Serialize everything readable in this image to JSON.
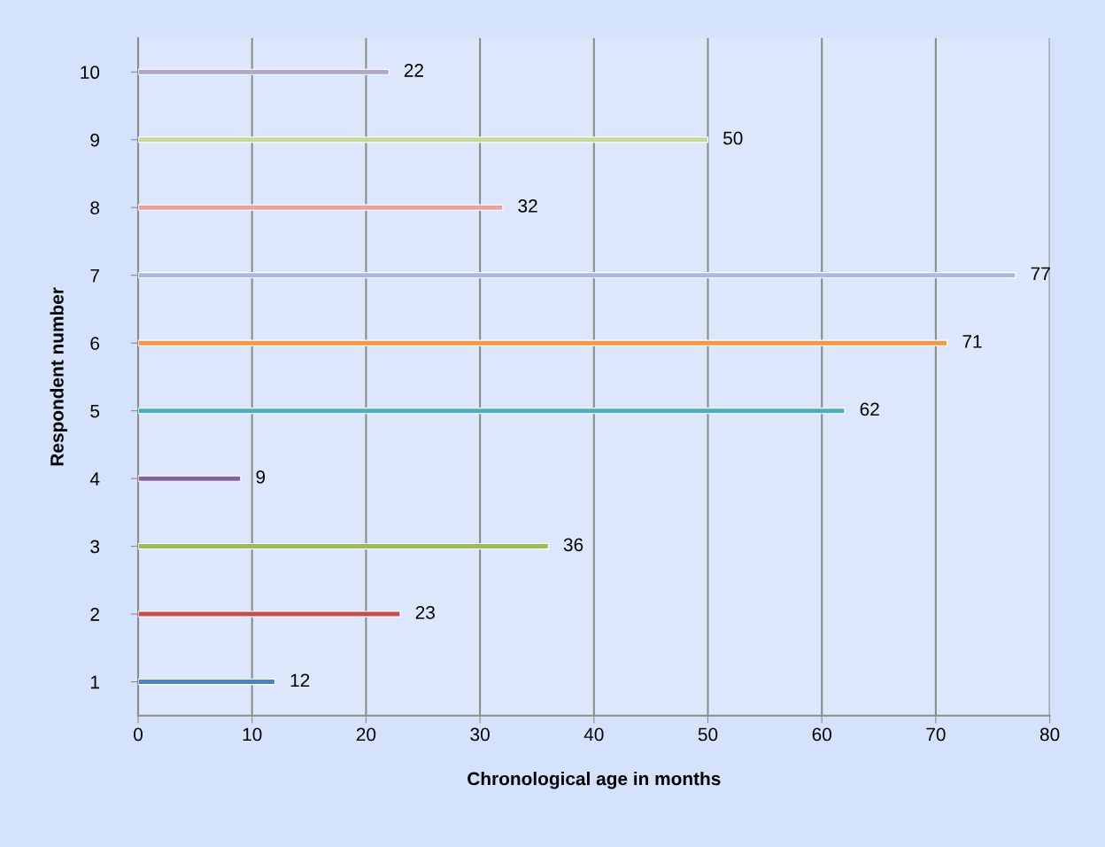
{
  "chart_data": {
    "type": "bar",
    "orientation": "horizontal",
    "xlabel": "Chronological age in months",
    "ylabel": "Respondent number",
    "categories": [
      "10",
      "9",
      "8",
      "7",
      "6",
      "5",
      "4",
      "3",
      "2",
      "1"
    ],
    "values": [
      22,
      50,
      32,
      77,
      71,
      62,
      9,
      36,
      23,
      12
    ],
    "colors": [
      "#b0a6c6",
      "#c6d99a",
      "#e6a3a3",
      "#a9bce0",
      "#f09a48",
      "#4bacc6",
      "#8064a2",
      "#9bbb59",
      "#c0504d",
      "#4f81bd"
    ],
    "xlim": [
      0,
      80
    ],
    "xticks": [
      0,
      10,
      20,
      30,
      40,
      50,
      60,
      70,
      80
    ],
    "grid": "x",
    "data_labels": true
  }
}
